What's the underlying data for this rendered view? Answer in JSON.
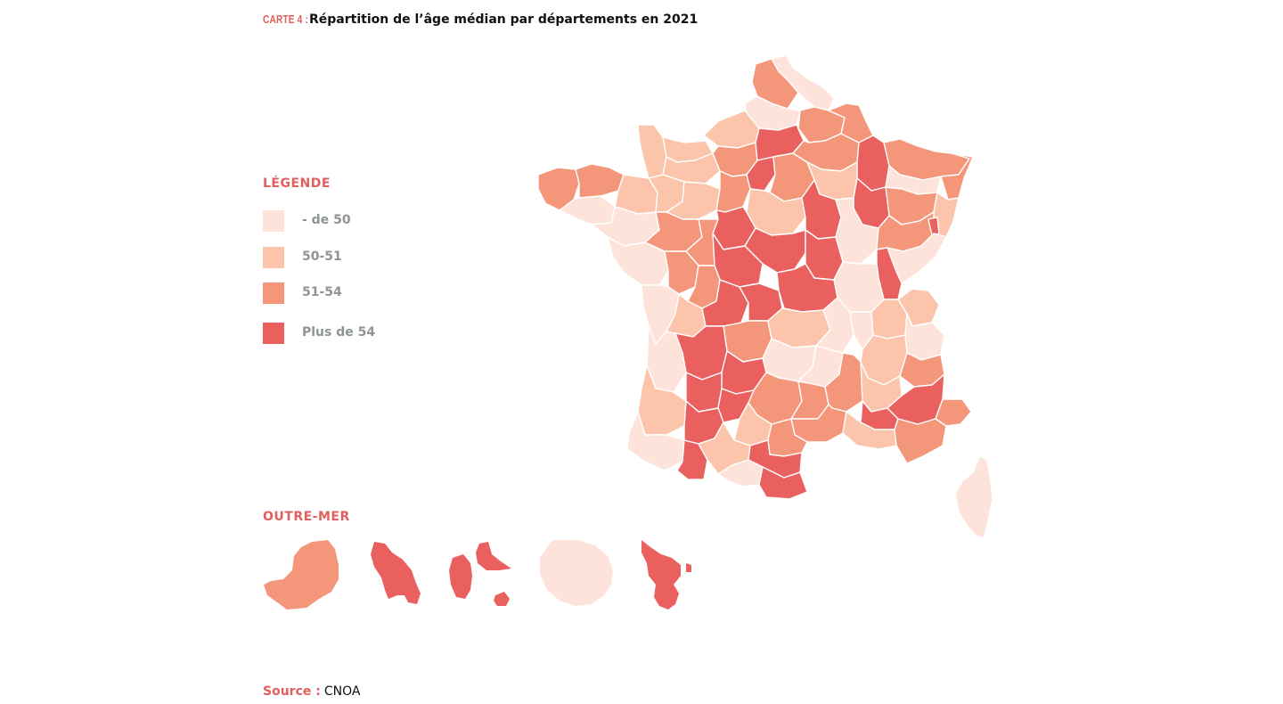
{
  "title": {
    "kicker": "CARTE 4 :",
    "text": "Répartition de l’âge médian par départements en 2021"
  },
  "legend": {
    "heading": "LÉGENDE",
    "items": [
      {
        "label": "- de 50",
        "color": "#fde3d9"
      },
      {
        "label": "50-51",
        "color": "#fbc4ab"
      },
      {
        "label": "51-54",
        "color": "#f3967a"
      },
      {
        "label": "Plus de 54",
        "color": "#e9605f"
      }
    ]
  },
  "outre_mer": {
    "heading": "OUTRE-MER",
    "territories": [
      {
        "class": "51-54"
      },
      {
        "class": "Plus de 54"
      },
      {
        "class": "Plus de 54"
      },
      {
        "class": "- de 50"
      },
      {
        "class": "Plus de 54"
      }
    ]
  },
  "source": {
    "label": "Source :",
    "value": "CNOA"
  }
}
